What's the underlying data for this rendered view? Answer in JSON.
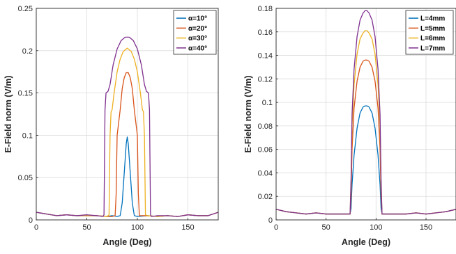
{
  "chart_data": [
    {
      "type": "line",
      "title": "",
      "xlabel": "Angle (Deg)",
      "ylabel": "E-Field norm (V/m)",
      "xlim": [
        0,
        180
      ],
      "ylim": [
        0,
        0.25
      ],
      "xticks": [
        0,
        50,
        100,
        150
      ],
      "yticks": [
        0,
        0.05,
        0.1,
        0.15,
        0.2,
        0.25
      ],
      "ytick_labels": [
        "0",
        "0.05",
        "0.1",
        "0.15",
        "0.2",
        "0.25"
      ],
      "grid": true,
      "legend_position": "top-right",
      "series": [
        {
          "name": "α=10°",
          "color": "#0072BD",
          "points": [
            [
              0,
              0.009
            ],
            [
              10,
              0.007
            ],
            [
              20,
              0.005
            ],
            [
              30,
              0.006
            ],
            [
              40,
              0.005
            ],
            [
              50,
              0.005
            ],
            [
              60,
              0.005
            ],
            [
              70,
              0.004
            ],
            [
              75,
              0.005
            ],
            [
              80,
              0.004
            ],
            [
              83,
              0.005
            ],
            [
              85,
              0.02
            ],
            [
              87,
              0.055
            ],
            [
              89,
              0.09
            ],
            [
              90,
              0.098
            ],
            [
              91,
              0.09
            ],
            [
              93,
              0.055
            ],
            [
              95,
              0.02
            ],
            [
              97,
              0.005
            ],
            [
              100,
              0.004
            ],
            [
              110,
              0.005
            ],
            [
              120,
              0.004
            ],
            [
              130,
              0.005
            ],
            [
              140,
              0.004
            ],
            [
              150,
              0.006
            ],
            [
              160,
              0.005
            ],
            [
              170,
              0.005
            ],
            [
              180,
              0.009
            ]
          ]
        },
        {
          "name": "α=20°",
          "color": "#D95319",
          "points": [
            [
              0,
              0.009
            ],
            [
              10,
              0.007
            ],
            [
              20,
              0.005
            ],
            [
              30,
              0.006
            ],
            [
              40,
              0.005
            ],
            [
              50,
              0.005
            ],
            [
              60,
              0.005
            ],
            [
              70,
              0.004
            ],
            [
              75,
              0.004
            ],
            [
              78,
              0.005
            ],
            [
              79,
              0.03
            ],
            [
              80,
              0.1
            ],
            [
              81,
              0.11
            ],
            [
              83,
              0.13
            ],
            [
              85,
              0.155
            ],
            [
              87,
              0.168
            ],
            [
              89,
              0.174
            ],
            [
              91,
              0.174
            ],
            [
              93,
              0.168
            ],
            [
              95,
              0.155
            ],
            [
              97,
              0.13
            ],
            [
              99,
              0.11
            ],
            [
              100,
              0.1
            ],
            [
              101,
              0.03
            ],
            [
              102,
              0.005
            ],
            [
              110,
              0.005
            ],
            [
              120,
              0.004
            ],
            [
              130,
              0.005
            ],
            [
              140,
              0.004
            ],
            [
              150,
              0.006
            ],
            [
              160,
              0.005
            ],
            [
              170,
              0.005
            ],
            [
              180,
              0.009
            ]
          ]
        },
        {
          "name": "α=30°",
          "color": "#EDB120",
          "points": [
            [
              0,
              0.009
            ],
            [
              10,
              0.007
            ],
            [
              20,
              0.005
            ],
            [
              30,
              0.006
            ],
            [
              40,
              0.005
            ],
            [
              50,
              0.005
            ],
            [
              60,
              0.005
            ],
            [
              70,
              0.004
            ],
            [
              72,
              0.006
            ],
            [
              73,
              0.1
            ],
            [
              74,
              0.128
            ],
            [
              75,
              0.13
            ],
            [
              77,
              0.15
            ],
            [
              80,
              0.175
            ],
            [
              83,
              0.19
            ],
            [
              86,
              0.199
            ],
            [
              90,
              0.203
            ],
            [
              94,
              0.199
            ],
            [
              97,
              0.19
            ],
            [
              100,
              0.175
            ],
            [
              103,
              0.15
            ],
            [
              105,
              0.13
            ],
            [
              106,
              0.128
            ],
            [
              107,
              0.1
            ],
            [
              108,
              0.006
            ],
            [
              110,
              0.005
            ],
            [
              120,
              0.004
            ],
            [
              130,
              0.005
            ],
            [
              140,
              0.004
            ],
            [
              150,
              0.006
            ],
            [
              160,
              0.005
            ],
            [
              170,
              0.005
            ],
            [
              180,
              0.009
            ]
          ]
        },
        {
          "name": "α=40°",
          "color": "#7E2F8E",
          "points": [
            [
              0,
              0.009
            ],
            [
              10,
              0.007
            ],
            [
              20,
              0.005
            ],
            [
              30,
              0.006
            ],
            [
              40,
              0.005
            ],
            [
              50,
              0.006
            ],
            [
              60,
              0.005
            ],
            [
              66,
              0.004
            ],
            [
              67,
              0.006
            ],
            [
              68,
              0.13
            ],
            [
              69,
              0.15
            ],
            [
              71,
              0.152
            ],
            [
              73,
              0.16
            ],
            [
              76,
              0.183
            ],
            [
              80,
              0.202
            ],
            [
              84,
              0.212
            ],
            [
              88,
              0.216
            ],
            [
              92,
              0.216
            ],
            [
              96,
              0.212
            ],
            [
              100,
              0.202
            ],
            [
              104,
              0.183
            ],
            [
              107,
              0.16
            ],
            [
              109,
              0.152
            ],
            [
              111,
              0.15
            ],
            [
              112,
              0.13
            ],
            [
              113,
              0.006
            ],
            [
              114,
              0.004
            ],
            [
              120,
              0.005
            ],
            [
              130,
              0.005
            ],
            [
              140,
              0.004
            ],
            [
              150,
              0.006
            ],
            [
              160,
              0.005
            ],
            [
              170,
              0.005
            ],
            [
              180,
              0.009
            ]
          ]
        }
      ]
    },
    {
      "type": "line",
      "title": "",
      "xlabel": "Angle (Deg)",
      "ylabel": "E-Field norm (V/m)",
      "xlim": [
        0,
        180
      ],
      "ylim": [
        0,
        0.18
      ],
      "xticks": [
        0,
        50,
        100,
        150
      ],
      "yticks": [
        0,
        0.02,
        0.04,
        0.06,
        0.08,
        0.1,
        0.12,
        0.14,
        0.16,
        0.18
      ],
      "ytick_labels": [
        "0",
        "0.02",
        "0.04",
        "0.06",
        "0.08",
        "0.1",
        "0.12",
        "0.14",
        "0.16",
        "0.18"
      ],
      "grid": true,
      "legend_position": "top-right",
      "series": [
        {
          "name": "L=4mm",
          "color": "#0072BD",
          "points": [
            [
              0,
              0.009
            ],
            [
              10,
              0.007
            ],
            [
              20,
              0.006
            ],
            [
              30,
              0.005
            ],
            [
              40,
              0.006
            ],
            [
              50,
              0.005
            ],
            [
              60,
              0.005
            ],
            [
              70,
              0.005
            ],
            [
              74,
              0.005
            ],
            [
              75,
              0.01
            ],
            [
              76,
              0.03
            ],
            [
              78,
              0.055
            ],
            [
              81,
              0.078
            ],
            [
              84,
              0.091
            ],
            [
              87,
              0.096
            ],
            [
              89,
              0.097
            ],
            [
              91,
              0.097
            ],
            [
              93,
              0.096
            ],
            [
              96,
              0.091
            ],
            [
              99,
              0.078
            ],
            [
              102,
              0.055
            ],
            [
              104,
              0.03
            ],
            [
              105,
              0.01
            ],
            [
              106,
              0.005
            ],
            [
              110,
              0.005
            ],
            [
              120,
              0.005
            ],
            [
              130,
              0.005
            ],
            [
              140,
              0.006
            ],
            [
              150,
              0.005
            ],
            [
              160,
              0.006
            ],
            [
              170,
              0.007
            ],
            [
              180,
              0.009
            ]
          ]
        },
        {
          "name": "L=5mm",
          "color": "#D95319",
          "points": [
            [
              0,
              0.009
            ],
            [
              10,
              0.007
            ],
            [
              20,
              0.006
            ],
            [
              30,
              0.005
            ],
            [
              40,
              0.006
            ],
            [
              50,
              0.005
            ],
            [
              60,
              0.005
            ],
            [
              70,
              0.005
            ],
            [
              74,
              0.005
            ],
            [
              75,
              0.02
            ],
            [
              76,
              0.06
            ],
            [
              78,
              0.095
            ],
            [
              81,
              0.118
            ],
            [
              84,
              0.13
            ],
            [
              87,
              0.135
            ],
            [
              89,
              0.136
            ],
            [
              91,
              0.136
            ],
            [
              93,
              0.135
            ],
            [
              96,
              0.13
            ],
            [
              99,
              0.118
            ],
            [
              102,
              0.095
            ],
            [
              104,
              0.06
            ],
            [
              105,
              0.02
            ],
            [
              106,
              0.005
            ],
            [
              110,
              0.005
            ],
            [
              120,
              0.005
            ],
            [
              130,
              0.005
            ],
            [
              140,
              0.006
            ],
            [
              150,
              0.005
            ],
            [
              160,
              0.006
            ],
            [
              170,
              0.007
            ],
            [
              180,
              0.009
            ]
          ]
        },
        {
          "name": "L=6mm",
          "color": "#EDB120",
          "points": [
            [
              0,
              0.009
            ],
            [
              10,
              0.007
            ],
            [
              20,
              0.006
            ],
            [
              30,
              0.005
            ],
            [
              40,
              0.006
            ],
            [
              50,
              0.005
            ],
            [
              60,
              0.005
            ],
            [
              70,
              0.005
            ],
            [
              74,
              0.005
            ],
            [
              75,
              0.03
            ],
            [
              76,
              0.08
            ],
            [
              78,
              0.115
            ],
            [
              81,
              0.141
            ],
            [
              84,
              0.154
            ],
            [
              87,
              0.159
            ],
            [
              89,
              0.161
            ],
            [
              91,
              0.161
            ],
            [
              93,
              0.159
            ],
            [
              96,
              0.154
            ],
            [
              99,
              0.141
            ],
            [
              102,
              0.115
            ],
            [
              104,
              0.08
            ],
            [
              105,
              0.03
            ],
            [
              106,
              0.005
            ],
            [
              110,
              0.005
            ],
            [
              120,
              0.005
            ],
            [
              130,
              0.005
            ],
            [
              140,
              0.006
            ],
            [
              150,
              0.005
            ],
            [
              160,
              0.006
            ],
            [
              170,
              0.007
            ],
            [
              180,
              0.009
            ]
          ]
        },
        {
          "name": "L=7mm",
          "color": "#7E2F8E",
          "points": [
            [
              0,
              0.009
            ],
            [
              10,
              0.007
            ],
            [
              20,
              0.006
            ],
            [
              30,
              0.005
            ],
            [
              40,
              0.006
            ],
            [
              50,
              0.005
            ],
            [
              60,
              0.005
            ],
            [
              70,
              0.005
            ],
            [
              74,
              0.005
            ],
            [
              75,
              0.035
            ],
            [
              76,
              0.09
            ],
            [
              78,
              0.128
            ],
            [
              81,
              0.156
            ],
            [
              84,
              0.17
            ],
            [
              87,
              0.176
            ],
            [
              89,
              0.178
            ],
            [
              91,
              0.178
            ],
            [
              93,
              0.176
            ],
            [
              96,
              0.17
            ],
            [
              99,
              0.156
            ],
            [
              102,
              0.128
            ],
            [
              104,
              0.09
            ],
            [
              105,
              0.035
            ],
            [
              106,
              0.005
            ],
            [
              110,
              0.005
            ],
            [
              120,
              0.005
            ],
            [
              130,
              0.005
            ],
            [
              140,
              0.006
            ],
            [
              150,
              0.005
            ],
            [
              160,
              0.006
            ],
            [
              170,
              0.007
            ],
            [
              180,
              0.009
            ]
          ]
        }
      ]
    }
  ]
}
